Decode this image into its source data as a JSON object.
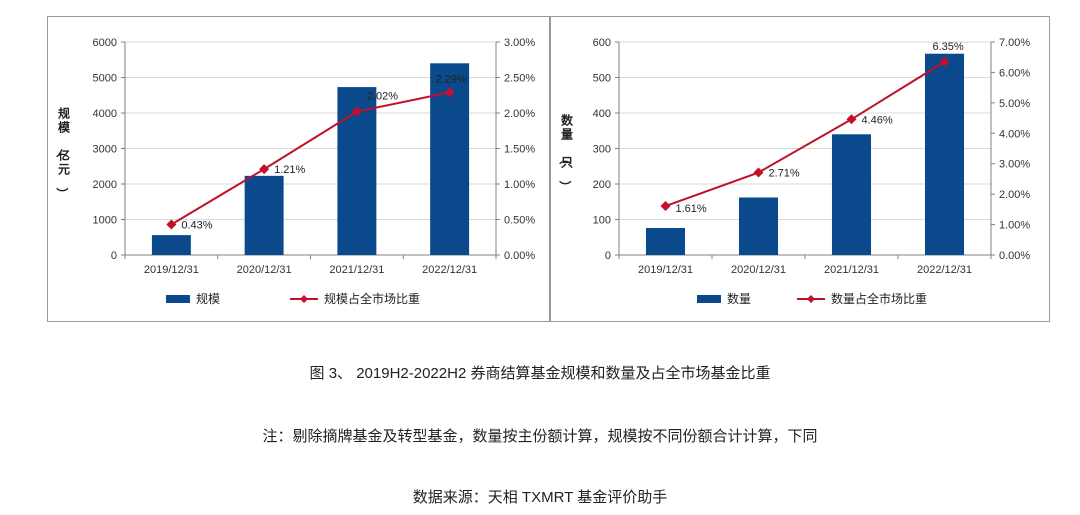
{
  "colors": {
    "bar": "#0a4a8c",
    "line": "#c0102a",
    "grid": "#d9d9d9",
    "axis": "#808080"
  },
  "chart_data": [
    {
      "type": "bar",
      "categories": [
        "2019/12/31",
        "2020/12/31",
        "2021/12/31",
        "2022/12/31"
      ],
      "series": [
        {
          "name": "规模",
          "kind": "bar",
          "axis": "left",
          "values": [
            560,
            2230,
            4730,
            5400
          ]
        },
        {
          "name": "规模占全市场比重",
          "kind": "line",
          "axis": "right",
          "values": [
            0.43,
            1.21,
            2.02,
            2.29
          ],
          "labels": [
            "0.43%",
            "1.21%",
            "2.02%",
            "2.29%"
          ]
        }
      ],
      "ylabel": "规模（亿元）",
      "ylim": [
        0,
        6000
      ],
      "yticks": [
        "0",
        "1000",
        "2000",
        "3000",
        "4000",
        "5000",
        "6000"
      ],
      "y2lim": [
        0,
        3
      ],
      "y2ticks": [
        "0.00%",
        "0.50%",
        "1.00%",
        "1.50%",
        "2.00%",
        "2.50%",
        "3.00%"
      ],
      "legend_position": "bottom",
      "grid": true
    },
    {
      "type": "bar",
      "categories": [
        "2019/12/31",
        "2020/12/31",
        "2021/12/31",
        "2022/12/31"
      ],
      "series": [
        {
          "name": "数量",
          "kind": "bar",
          "axis": "left",
          "values": [
            76,
            162,
            340,
            567
          ]
        },
        {
          "name": "数量占全市场比重",
          "kind": "line",
          "axis": "right",
          "values": [
            1.61,
            2.71,
            4.46,
            6.35
          ],
          "labels": [
            "1.61%",
            "2.71%",
            "4.46%",
            "6.35%"
          ]
        }
      ],
      "ylabel": "数量（只）",
      "ylim": [
        0,
        600
      ],
      "yticks": [
        "0",
        "100",
        "200",
        "300",
        "400",
        "500",
        "600"
      ],
      "y2lim": [
        0,
        7
      ],
      "y2ticks": [
        "0.00%",
        "1.00%",
        "2.00%",
        "3.00%",
        "4.00%",
        "5.00%",
        "6.00%",
        "7.00%"
      ],
      "legend_position": "bottom",
      "grid": true
    }
  ],
  "captions": {
    "title": "图 3、 2019H2-2022H2 券商结算基金规模和数量及占全市场基金比重",
    "note": "注：剔除摘牌基金及转型基金，数量按主份额计算，规模按不同份额合计计算，下同",
    "source": "数据来源：天相 TXMRT 基金评价助手"
  }
}
